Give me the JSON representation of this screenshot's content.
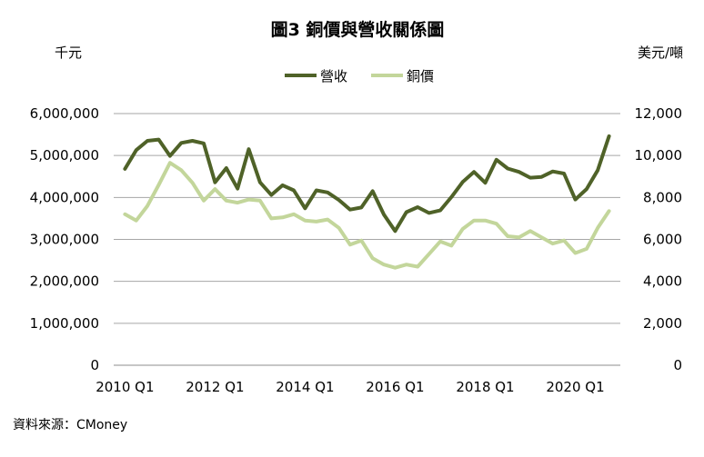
{
  "chart_data": {
    "type": "line",
    "title": "圖3 銅價與營收關係圖",
    "left_unit": "千元",
    "right_unit": "美元/噸",
    "source": "資料來源：CMoney",
    "x_tick_labels": [
      "2010 Q1",
      "2012 Q1",
      "2014 Q1",
      "2016 Q1",
      "2018 Q1",
      "2020 Q1"
    ],
    "x_tick_index": [
      0,
      8,
      16,
      24,
      32,
      40
    ],
    "x_range": [
      -1,
      44
    ],
    "y_left": {
      "min": 0,
      "max": 6000000,
      "step": 1000000,
      "ticks": [
        "0",
        "1,000,000",
        "2,000,000",
        "3,000,000",
        "4,000,000",
        "5,000,000",
        "6,000,000"
      ]
    },
    "y_right": {
      "min": 0,
      "max": 12000,
      "step": 2000,
      "ticks": [
        "0",
        "2,000",
        "4,000",
        "6,000",
        "8,000",
        "10,000",
        "12,000"
      ]
    },
    "grid": true,
    "legend_position": "top-center",
    "series": [
      {
        "name": "營收",
        "axis": "left",
        "color": "#4f6228",
        "values": [
          4680000,
          5130000,
          5350000,
          5380000,
          4990000,
          5300000,
          5350000,
          5290000,
          4360000,
          4700000,
          4210000,
          5150000,
          4360000,
          4060000,
          4290000,
          4170000,
          3740000,
          4170000,
          4120000,
          3940000,
          3710000,
          3760000,
          4150000,
          3590000,
          3200000,
          3650000,
          3770000,
          3630000,
          3690000,
          4010000,
          4370000,
          4610000,
          4350000,
          4900000,
          4690000,
          4610000,
          4470000,
          4490000,
          4620000,
          4570000,
          3950000,
          4200000,
          4650000,
          5460000
        ]
      },
      {
        "name": "銅價",
        "axis": "right",
        "color": "#c3d69b",
        "values": [
          7200,
          6900,
          7600,
          8600,
          9650,
          9300,
          8700,
          7850,
          8400,
          7850,
          7750,
          7900,
          7850,
          7000,
          7050,
          7200,
          6900,
          6850,
          6950,
          6550,
          5750,
          5950,
          5100,
          4800,
          4650,
          4800,
          4700,
          5300,
          5900,
          5700,
          6500,
          6900,
          6900,
          6750,
          6150,
          6100,
          6400,
          6100,
          5800,
          5950,
          5350,
          5550,
          6550,
          7350
        ]
      }
    ]
  }
}
